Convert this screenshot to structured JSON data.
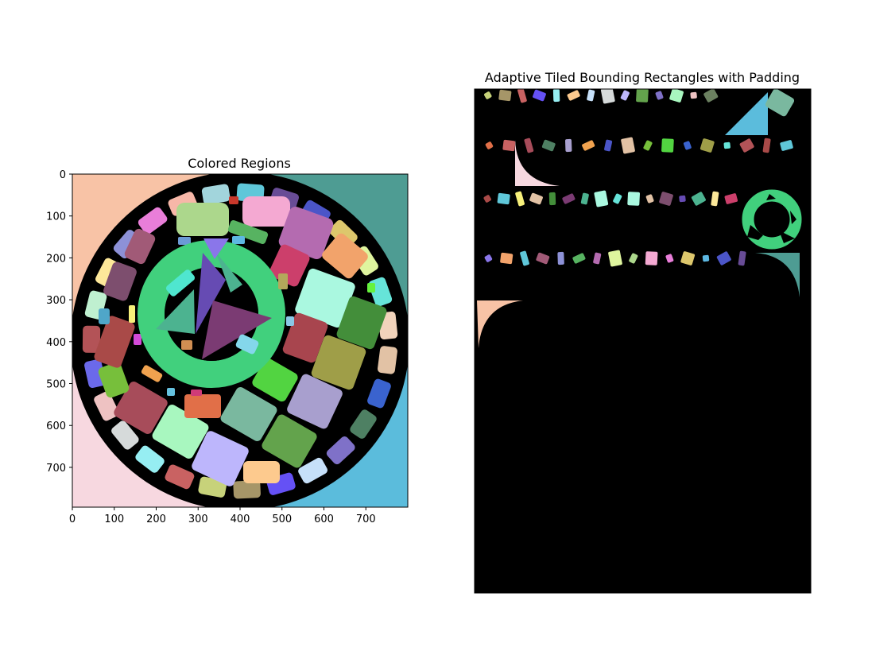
{
  "chart_data": [
    {
      "type": "image",
      "title": "Colored Regions",
      "xlabel": "",
      "ylabel": "",
      "xlim": [
        0,
        800
      ],
      "ylim": [
        795,
        0
      ],
      "xticks": [
        0,
        100,
        200,
        300,
        400,
        500,
        600,
        700
      ],
      "yticks": [
        0,
        100,
        200,
        300,
        400,
        500,
        600,
        700
      ],
      "grid": false,
      "colors": {
        "corner_top_left": "#f8c3a6",
        "corner_top_right": "#4e9c93",
        "corner_bottom_left": "#f7d8e0",
        "corner_bottom_right": "#5bbcdc",
        "center_ring": "#41d07d",
        "background": "#000000"
      }
    },
    {
      "type": "image",
      "title": "Adaptive Tiled Bounding Rectangles with Padding",
      "axes_visible": false,
      "grid": false,
      "colors": {
        "background": "#000000",
        "ring": "#41d07d",
        "quarter_top_right": "#5bbcdc",
        "quarter_pink": "#f7d8e0",
        "quarter_teal": "#4e9c93",
        "quarter_peach": "#f8c3a6"
      }
    }
  ]
}
